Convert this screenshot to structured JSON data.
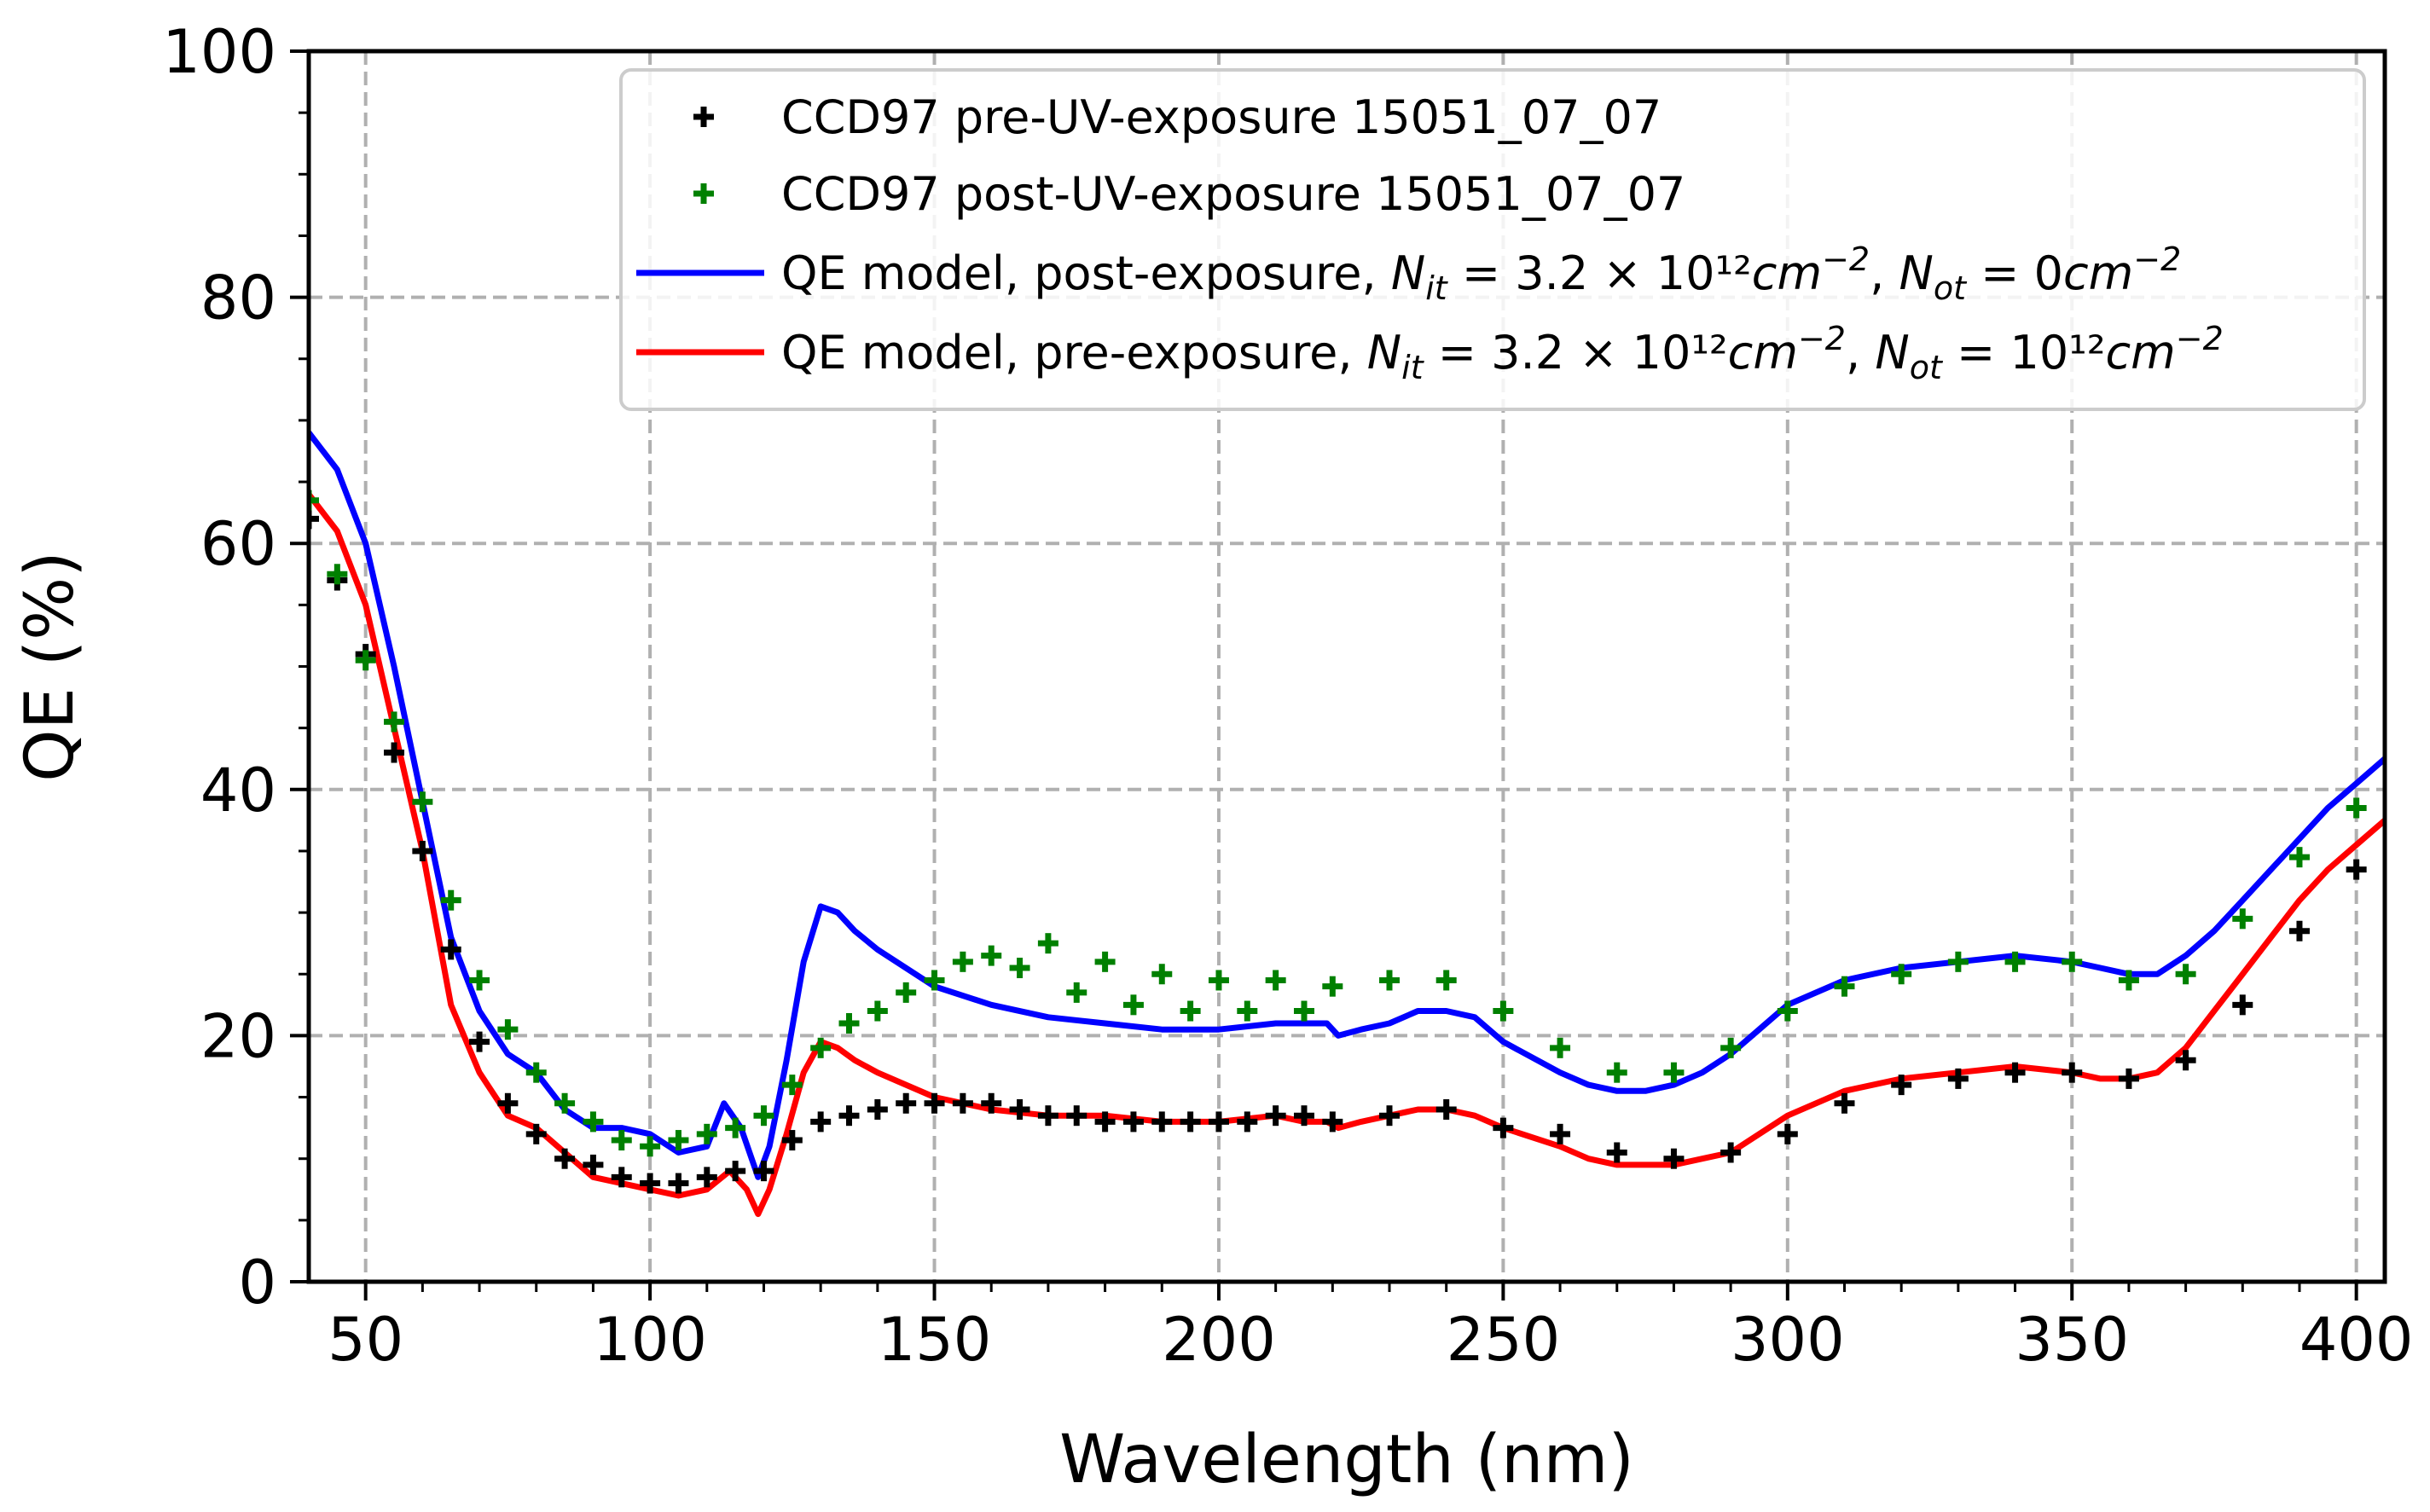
{
  "chart_data": {
    "type": "line",
    "xlabel": "Wavelength (nm)",
    "ylabel": "QE (%)",
    "xlim": [
      40,
      405
    ],
    "ylim": [
      0,
      100
    ],
    "xticks": [
      50,
      100,
      150,
      200,
      250,
      300,
      350,
      400
    ],
    "xtick_labels": [
      "50",
      "100",
      "150",
      "200",
      "250",
      "300",
      "350",
      "400"
    ],
    "yticks": [
      0,
      20,
      40,
      60,
      80,
      100
    ],
    "ytick_labels": [
      "0",
      "20",
      "40",
      "60",
      "80",
      "100"
    ],
    "grid": true,
    "legend_position": "top-right",
    "legend": [
      {
        "label": "CCD97 pre-UV-exposure 15051_07_07",
        "marker": "plus",
        "color": "#000000"
      },
      {
        "label": "CCD97 post-UV-exposure 15051_07_07",
        "marker": "plus",
        "color": "#008000"
      },
      {
        "label_parts": [
          "QE model, post-exposure, ",
          "N",
          "it",
          " = 3.2 × 10¹²",
          "cm",
          "−2",
          ", ",
          "N",
          "ot",
          " = 0",
          "cm",
          "−2"
        ],
        "line": true,
        "color": "#0000ff"
      },
      {
        "label_parts": [
          "QE model, pre-exposure, ",
          "N",
          "it",
          " = 3.2 × 10¹²",
          "cm",
          "−2",
          ", ",
          "N",
          "ot",
          " = 10¹²",
          "cm",
          "−2"
        ],
        "line": true,
        "color": "#ff0000"
      }
    ],
    "series": [
      {
        "name": "CCD97 pre-UV-exposure 15051_07_07",
        "kind": "scatter",
        "color": "#000000",
        "x": [
          40,
          45,
          50,
          55,
          60,
          65,
          70,
          75,
          80,
          85,
          90,
          95,
          100,
          105,
          110,
          115,
          120,
          125,
          130,
          135,
          140,
          145,
          150,
          155,
          160,
          165,
          170,
          175,
          180,
          185,
          190,
          195,
          200,
          205,
          210,
          215,
          220,
          230,
          240,
          250,
          260,
          270,
          280,
          290,
          300,
          310,
          320,
          330,
          340,
          350,
          360,
          370,
          380,
          390,
          400
        ],
        "y": [
          62,
          57,
          51,
          43,
          35,
          27,
          19.5,
          14.5,
          12,
          10,
          9.5,
          8.5,
          8,
          8,
          8.5,
          9,
          9,
          11.5,
          13,
          13.5,
          14,
          14.5,
          14.5,
          14.5,
          14.5,
          14,
          13.5,
          13.5,
          13,
          13,
          13,
          13,
          13,
          13,
          13.5,
          13.5,
          13,
          13.5,
          14,
          12.5,
          12,
          10.5,
          10,
          10.5,
          12,
          14.5,
          16,
          16.5,
          17,
          17,
          16.5,
          18,
          22.5,
          28.5,
          33.5
        ]
      },
      {
        "name": "CCD97 post-UV-exposure 15051_07_07",
        "kind": "scatter",
        "color": "#008000",
        "x": [
          40,
          45,
          50,
          55,
          60,
          65,
          70,
          75,
          80,
          85,
          90,
          95,
          100,
          105,
          110,
          115,
          120,
          125,
          130,
          135,
          140,
          145,
          150,
          155,
          160,
          165,
          170,
          175,
          180,
          185,
          190,
          195,
          200,
          205,
          210,
          215,
          220,
          230,
          240,
          250,
          260,
          270,
          280,
          290,
          300,
          310,
          320,
          330,
          340,
          350,
          360,
          370,
          380,
          390,
          400
        ],
        "y": [
          63.5,
          57.5,
          50.5,
          45.5,
          39,
          31,
          24.5,
          20.5,
          17,
          14.5,
          13,
          11.5,
          11,
          11.5,
          12,
          12.5,
          13.5,
          16,
          19,
          21,
          22,
          23.5,
          24.5,
          26,
          26.5,
          25.5,
          27.5,
          23.5,
          26,
          22.5,
          25,
          22,
          24.5,
          22,
          24.5,
          22,
          24,
          24.5,
          24.5,
          22,
          19,
          17,
          17,
          19,
          22,
          24,
          25,
          26,
          26,
          26,
          24.5,
          25,
          29.5,
          34.5,
          38.5
        ]
      },
      {
        "name": "QE model, post-exposure",
        "kind": "line",
        "color": "#0000ff",
        "x": [
          40,
          45,
          50,
          55,
          60,
          65,
          70,
          75,
          80,
          85,
          90,
          95,
          100,
          105,
          110,
          113,
          116,
          119,
          121,
          124,
          127,
          130,
          133,
          136,
          140,
          150,
          160,
          170,
          180,
          190,
          200,
          210,
          215,
          219,
          221,
          225,
          230,
          235,
          240,
          245,
          250,
          260,
          265,
          270,
          275,
          280,
          285,
          290,
          295,
          300,
          310,
          320,
          330,
          340,
          350,
          355,
          360,
          365,
          370,
          375,
          380,
          385,
          390,
          395,
          400,
          405
        ],
        "y": [
          69,
          66,
          60,
          50,
          39,
          28,
          22,
          18.5,
          17,
          14,
          12.5,
          12.5,
          12,
          10.5,
          11,
          14.5,
          12.5,
          8.5,
          11,
          18,
          26,
          30.5,
          30,
          28.5,
          27,
          24,
          22.5,
          21.5,
          21,
          20.5,
          20.5,
          21,
          21,
          21,
          20,
          20.5,
          21,
          22,
          22,
          21.5,
          19.5,
          17,
          16,
          15.5,
          15.5,
          16,
          17,
          18.5,
          20.5,
          22.5,
          24.5,
          25.5,
          26,
          26.5,
          26,
          25.5,
          25,
          25,
          26.5,
          28.5,
          31,
          33.5,
          36,
          38.5,
          40.5,
          42.5
        ]
      },
      {
        "name": "QE model, pre-exposure",
        "kind": "line",
        "color": "#ff0000",
        "x": [
          40,
          45,
          50,
          55,
          60,
          65,
          70,
          75,
          80,
          85,
          90,
          95,
          100,
          105,
          110,
          114,
          117,
          119,
          121,
          124,
          127,
          130,
          133,
          136,
          140,
          150,
          160,
          170,
          180,
          190,
          200,
          210,
          215,
          219,
          221,
          225,
          230,
          235,
          240,
          245,
          250,
          260,
          265,
          270,
          275,
          280,
          285,
          290,
          295,
          300,
          310,
          320,
          330,
          340,
          350,
          355,
          360,
          365,
          370,
          375,
          380,
          385,
          390,
          395,
          400,
          405
        ],
        "y": [
          64,
          61,
          55,
          45,
          35,
          22.5,
          17,
          13.5,
          12.5,
          10.5,
          8.5,
          8,
          7.5,
          7,
          7.5,
          9,
          7.5,
          5.5,
          7.5,
          12,
          17,
          19.5,
          19,
          18,
          17,
          15,
          14,
          13.5,
          13.5,
          13,
          13,
          13.5,
          13,
          13,
          12.5,
          13,
          13.5,
          14,
          14,
          13.5,
          12.5,
          11,
          10,
          9.5,
          9.5,
          9.5,
          10,
          10.5,
          12,
          13.5,
          15.5,
          16.5,
          17,
          17.5,
          17,
          16.5,
          16.5,
          17,
          19,
          22,
          25,
          28,
          31,
          33.5,
          35.5,
          37.5
        ]
      }
    ]
  }
}
